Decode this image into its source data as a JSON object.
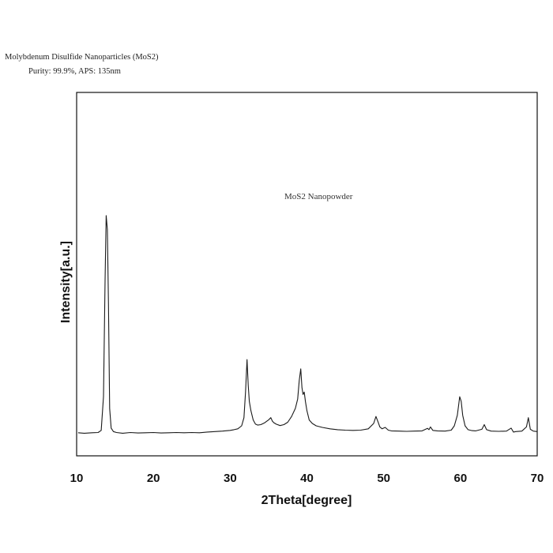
{
  "header": {
    "title": "Molybdenum Disulfide Nanoparticles (MoS2)",
    "subtitle": "Purity: 99.9%, APS: 135nm"
  },
  "chart_data": {
    "type": "line",
    "title": "",
    "xlabel": "2Theta[degree]",
    "ylabel": "Intensity[a.u.]",
    "annotation": "MoS2 Nanopowder",
    "xlim": [
      10,
      70
    ],
    "ylim": [
      0,
      100
    ],
    "xticks": [
      10,
      20,
      30,
      40,
      50,
      60,
      70
    ],
    "yticks": [],
    "grid": false,
    "series": [
      {
        "name": "",
        "color": "#1a1a1a",
        "x": [
          10.2,
          11,
          12,
          12.8,
          13.2,
          13.5,
          13.7,
          13.85,
          14.0,
          14.15,
          14.3,
          14.5,
          14.8,
          15.2,
          16,
          17,
          18,
          19,
          20,
          21,
          22,
          23,
          24,
          25,
          26,
          27,
          28,
          29,
          30,
          30.5,
          31,
          31.5,
          31.8,
          32.0,
          32.2,
          32.35,
          32.5,
          32.7,
          33.0,
          33.3,
          33.6,
          34.0,
          34.5,
          35.0,
          35.3,
          35.5,
          35.7,
          36.0,
          36.5,
          37,
          37.5,
          38.0,
          38.5,
          38.8,
          39.0,
          39.2,
          39.35,
          39.5,
          39.65,
          39.8,
          40.0,
          40.3,
          40.7,
          41.2,
          42,
          43,
          44,
          45,
          46,
          47,
          48,
          48.7,
          49.0,
          49.3,
          49.5,
          49.8,
          50.2,
          50.6,
          51.0,
          52,
          53,
          54,
          55,
          55.7,
          55.9,
          56.1,
          56.4,
          57,
          58,
          58.8,
          59.2,
          59.6,
          59.9,
          60.1,
          60.3,
          60.6,
          61.0,
          61.5,
          62,
          62.8,
          63.1,
          63.4,
          64,
          65,
          66,
          66.6,
          66.9,
          67.2,
          68,
          68.6,
          68.85,
          69.1,
          69.5,
          70
        ],
        "y": [
          4.5,
          4.3,
          4.5,
          4.6,
          5.5,
          20,
          70,
          98,
          92,
          60,
          15,
          6.5,
          5,
          4.6,
          4.3,
          4.6,
          4.4,
          4.5,
          4.6,
          4.4,
          4.5,
          4.6,
          4.5,
          4.6,
          4.5,
          4.8,
          5.0,
          5.2,
          5.5,
          5.8,
          6.2,
          7.5,
          11,
          22,
          36,
          25,
          18,
          14,
          10,
          8.2,
          7.8,
          8.0,
          8.8,
          10,
          11,
          9.5,
          8.8,
          8.2,
          7.6,
          8.0,
          9.0,
          11.5,
          15,
          19,
          27,
          32,
          24,
          21,
          22,
          18,
          14,
          10,
          8.5,
          7.5,
          6.8,
          6.2,
          5.8,
          5.6,
          5.5,
          5.6,
          6.2,
          8.5,
          11.5,
          8.8,
          7.0,
          6.2,
          6.8,
          5.6,
          5.3,
          5.2,
          5.1,
          5.2,
          5.3,
          6.4,
          5.8,
          7.0,
          5.5,
          5.3,
          5.2,
          5.6,
          7.5,
          12,
          20,
          18,
          12,
          7.5,
          5.8,
          5.4,
          5.3,
          6.0,
          8.0,
          5.8,
          5.2,
          5.1,
          5.2,
          6.5,
          4.8,
          5.0,
          5.2,
          7.0,
          11,
          6.0,
          5.2,
          5.0
        ]
      }
    ]
  }
}
